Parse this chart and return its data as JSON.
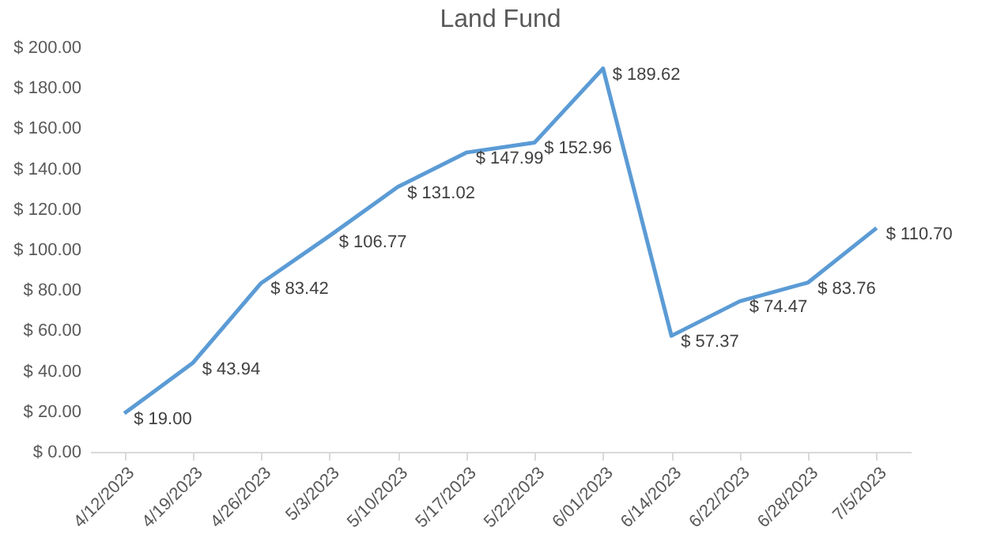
{
  "chart_data": {
    "type": "line",
    "title": "Land Fund",
    "categories": [
      "4/12/2023",
      "4/19/2023",
      "4/26/2023",
      "5/3/2023",
      "5/10/2023",
      "5/17/2023",
      "5/22/2023",
      "6/01/2023",
      "6/14/2023",
      "6/22/2023",
      "6/28/2023",
      "7/5/2023"
    ],
    "series": [
      {
        "color": "#5b9bd5",
        "values": [
          19.0,
          43.94,
          83.42,
          106.77,
          131.02,
          147.99,
          152.96,
          189.62,
          57.37,
          74.47,
          83.76,
          110.7
        ],
        "value_labels": [
          "$ 19.00",
          "$ 43.94",
          "$ 83.42",
          "$ 106.77",
          "$ 131.02",
          "$ 147.99",
          "$ 152.96",
          "$ 189.62",
          "$ 57.37",
          "$ 74.47",
          "$ 83.76",
          "$ 110.70"
        ]
      }
    ],
    "ylim": [
      0,
      200
    ],
    "yticks": [
      {
        "value": 0,
        "label": "$ 0.00"
      },
      {
        "value": 20,
        "label": "$ 20.00"
      },
      {
        "value": 40,
        "label": "$ 40.00"
      },
      {
        "value": 60,
        "label": "$ 60.00"
      },
      {
        "value": 80,
        "label": "$ 80.00"
      },
      {
        "value": 100,
        "label": "$ 100.00"
      },
      {
        "value": 120,
        "label": "$ 120.00"
      },
      {
        "value": 140,
        "label": "$ 140.00"
      },
      {
        "value": 160,
        "label": "$ 160.00"
      },
      {
        "value": 180,
        "label": "$ 180.00"
      },
      {
        "value": 200,
        "label": "$ 200.00"
      }
    ],
    "marker": "none",
    "line_style": "solid"
  }
}
